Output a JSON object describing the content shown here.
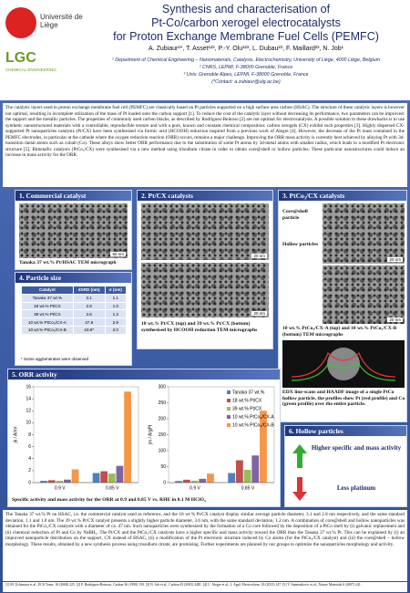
{
  "header": {
    "title": [
      "Synthesis and characterisation of",
      "Pt-Co/carbon xerogel electrocatalysts",
      "for Proton Exchange Membrane Fuel Cells (PEMFC)"
    ],
    "authors": "A. Zubiaur¹*, T. Asset¹²³, P.-Y. Olu¹²³, L. Dubau²³, F. Maillard²³, N. Job¹",
    "affiliations": [
      "¹ Department of Chemical Engineering – Nanomaterials, Catalysis, Electrochemistry, University of Liège, 4000 Liège, Belgium",
      "² CNRS, LEPMI, F-38000 Grenoble, France",
      "³ Univ. Grenoble Alpes, LEPMI, F-38000 Grenoble, France",
      "(*Contact: a.zubiaur@ulg.ac.be)"
    ],
    "logos": [
      "Université de Liège",
      "LGC",
      "CHEMICAL ENGINEERING"
    ]
  },
  "intro": "The catalytic layers used in proton exchange membrane fuel cell (PEMFC) are classically based on Pt particles supported on a high surface area carbon (HSAC). The structure of these catalytic layers is however not optimal, resulting in incomplete utilization of the mass of Pt loaded onto the carbon support [1]. To reduce the cost of the catalytic layer without decreasing its performance, two parameters can be improved: the support and the metallic particles. The properties of commonly used carbon blacks, as described by Rodríguez-Reinoso [2] are not optimal for electrocatalysis. A possible solution to these drawbacks is to use synthetic nanostructured materials with a controllable, reproducible texture and with a pure, known and constant chemical composition: carbon xerogels (CX) exhibit such properties [3]. Highly dispersed CX-supported Pt nanoparticles catalysts (Pt/CX) have been synthesised via formic acid (HCOOH) reduction inspired from a previous work of Alegre [4]. However, the decrease of the Pt mass contained in the PEMFC electrodes, in particular at the cathode where the oxygen reduction reaction (ORR) occurs, remains a major challenge. Improving the ORR mass activity is currently best achieved by alloying Pt with 3d-transition metal atoms such as cobalt (Co). These alloys show better ORR performance due to the substitution of some Pt atoms by 3d-metal atoms with smaller radius, which leads to a modified Pt electronic structure [5]. Bimetallic catalysts (PtCo₃/CX) were synthesised via a new method using trisodium citrate in order to obtain core@shell or hollow particles. These particular nanostructures could induce an increase in mass activity for the ORR.",
  "commercial": {
    "title": "1. Commercial catalyst",
    "scale": "50 nm",
    "caption": "Tanaka 37 wt.% Pt/HSAC TEM micrograph"
  },
  "pt_cx": {
    "title": "2. Pt/CX catalysts",
    "scales": [
      "20 nm",
      "20 nm"
    ],
    "caption": "18 wt.% Pt/CX (top) and 39 wt.% Pt/CX (bottom) synthesised by HCOOH reduction TEM micrographs"
  },
  "ptco_cx": {
    "title": "3. PtCo₃/CX catalysts",
    "labels": [
      "Core@shell particle",
      "Hollow particles"
    ],
    "scales": [
      "20 nm",
      "20 nm"
    ],
    "caption": "10 wt.% PtCo₃/CX-A (top) and 10 wt.% PtCo₃/CX-B (bottom) TEM micrographs",
    "edx_caption": "EDX line-scans and HAADF image of a single PtCo hollow particle, the profiles show Pt (red profile) and Co (green profile) over the entire particle."
  },
  "particle_size": {
    "title": "4. Particle size",
    "header": [
      "Catalyst",
      "dXRD (nm)",
      "σ (nm)"
    ],
    "rows": [
      [
        "Tanaka 37 wt.%",
        "3.1",
        "1.1"
      ],
      [
        "18 wt.% Pt/CX",
        "2.8",
        "1.0"
      ],
      [
        "39 wt.% Pt/CX",
        "3.6",
        "1.2"
      ],
      [
        "10 wt.% PtCo₃/CX-A",
        "47.8",
        "2.9"
      ],
      [
        "10 wt.% PtCo₃/CX-B",
        "43.8*",
        "2.0"
      ]
    ],
    "note": "* Some agglomerates were observed"
  },
  "orr": {
    "title": "5. ORR activity",
    "caption": "Specific activity and mass activity for the ORR at 0.9 and 0.85 V vs. RHE in 0.1 M HClO₄"
  },
  "chart_data": [
    {
      "type": "bar",
      "y_label": "jk / A/m²",
      "categories": [
        "0.9 V",
        "0.85 V"
      ],
      "series": [
        {
          "color": "#4f81bd",
          "values": [
            0.3,
            1.6
          ]
        },
        {
          "color": "#c0504d",
          "values": [
            0.4,
            1.9
          ]
        },
        {
          "color": "#9bbb59",
          "values": [
            0.3,
            1.5
          ]
        },
        {
          "color": "#8064a2",
          "values": [
            0.5,
            2.8
          ]
        },
        {
          "color": "#f79646",
          "values": [
            2.2,
            15.2
          ]
        }
      ],
      "ylim": [
        0,
        16
      ],
      "yticks": [
        0,
        2,
        4,
        6,
        8,
        10,
        12,
        14,
        16
      ]
    },
    {
      "type": "bar",
      "y_label": "jm / A/gPt",
      "categories": [
        "0.9 V",
        "0.85 V"
      ],
      "series": [
        {
          "name": "Tanaka 37 wt.%",
          "color": "#4f81bd",
          "values": [
            5,
            30
          ]
        },
        {
          "name": "18 wt.% Pt/CX",
          "color": "#c0504d",
          "values": [
            9,
            70
          ]
        },
        {
          "name": "39 wt.% Pt/CX",
          "color": "#9bbb59",
          "values": [
            6,
            40
          ]
        },
        {
          "name": "10 wt.% PtCo₃/CX-A",
          "color": "#8064a2",
          "values": [
            12,
            85
          ]
        },
        {
          "name": "10 wt.% PtCo₃/CX-B",
          "color": "#f79646",
          "values": [
            28,
            225
          ]
        }
      ],
      "ylim": [
        0,
        300
      ],
      "yticks": [
        0,
        50,
        100,
        150,
        200,
        250,
        300
      ],
      "legend": "upper-right"
    }
  ],
  "hollow": {
    "title": "6. Hollow particles",
    "points": [
      "Higher specific and mass activity",
      "Less platinum"
    ]
  },
  "conclusion": "The Tanaka 37 wt.% Pt on HSAC, i.e. the commercial catalyst used as reference, and the 18 wt.% Pt/CX catalyst display similar average particle diameter, 3.1 and 2.8 nm respectively, and the same standard deviation, 1.1 and 1.0 nm. The 39 wt.% Pt/CX catalyst presents a slightly higher particle diameter, 3.6 nm, with the same standard deviation, 1.2 nm. A combination of core@shell and hollow nanoparticles was obtained for the PtCo₃/CX catalysts with a diameter of ca. 47 nm. Such nanoparticles were synthesized by the formation of a Co core followed by the deposition of a PtCo shell by (i) galvanic replacement and (ii) chemical reduction of Pt and Co by NaBH₄. The Pt/CX and the PtCo₃/CX catalysts have a higher specific and mass activity toward the ORR than the Tanaka 37 wt.% Pt. This can be explained by (i) an improved nanoparticle distribution on the support, CX instead of HSAC, (ii) a modification of the Pt electronic structure induced by Co atoms (for the PtCo₃/CX catalyst) and (iii) the core@shell – hollow morphology. These results, obtained by a new synthesis process using trisodium citrate, are promising. Further experiments are planned by our groups to optimize the nanoparticles morphology and activity.",
  "references": "[1] M. Uchimura et al., ECS Trans. 16 (2008) 225. [2] F. Rodríguez-Reinoso, Carbon 36 (1998) 159. [3] N. Job et al., Carbon 43 (2005) 2481. [4] C. Alegre et al., J. Appl. Electrochem. 43 (2013) 147. [5] V. Stamenkovic et al., Nature Materials 6 (2007) 241."
}
